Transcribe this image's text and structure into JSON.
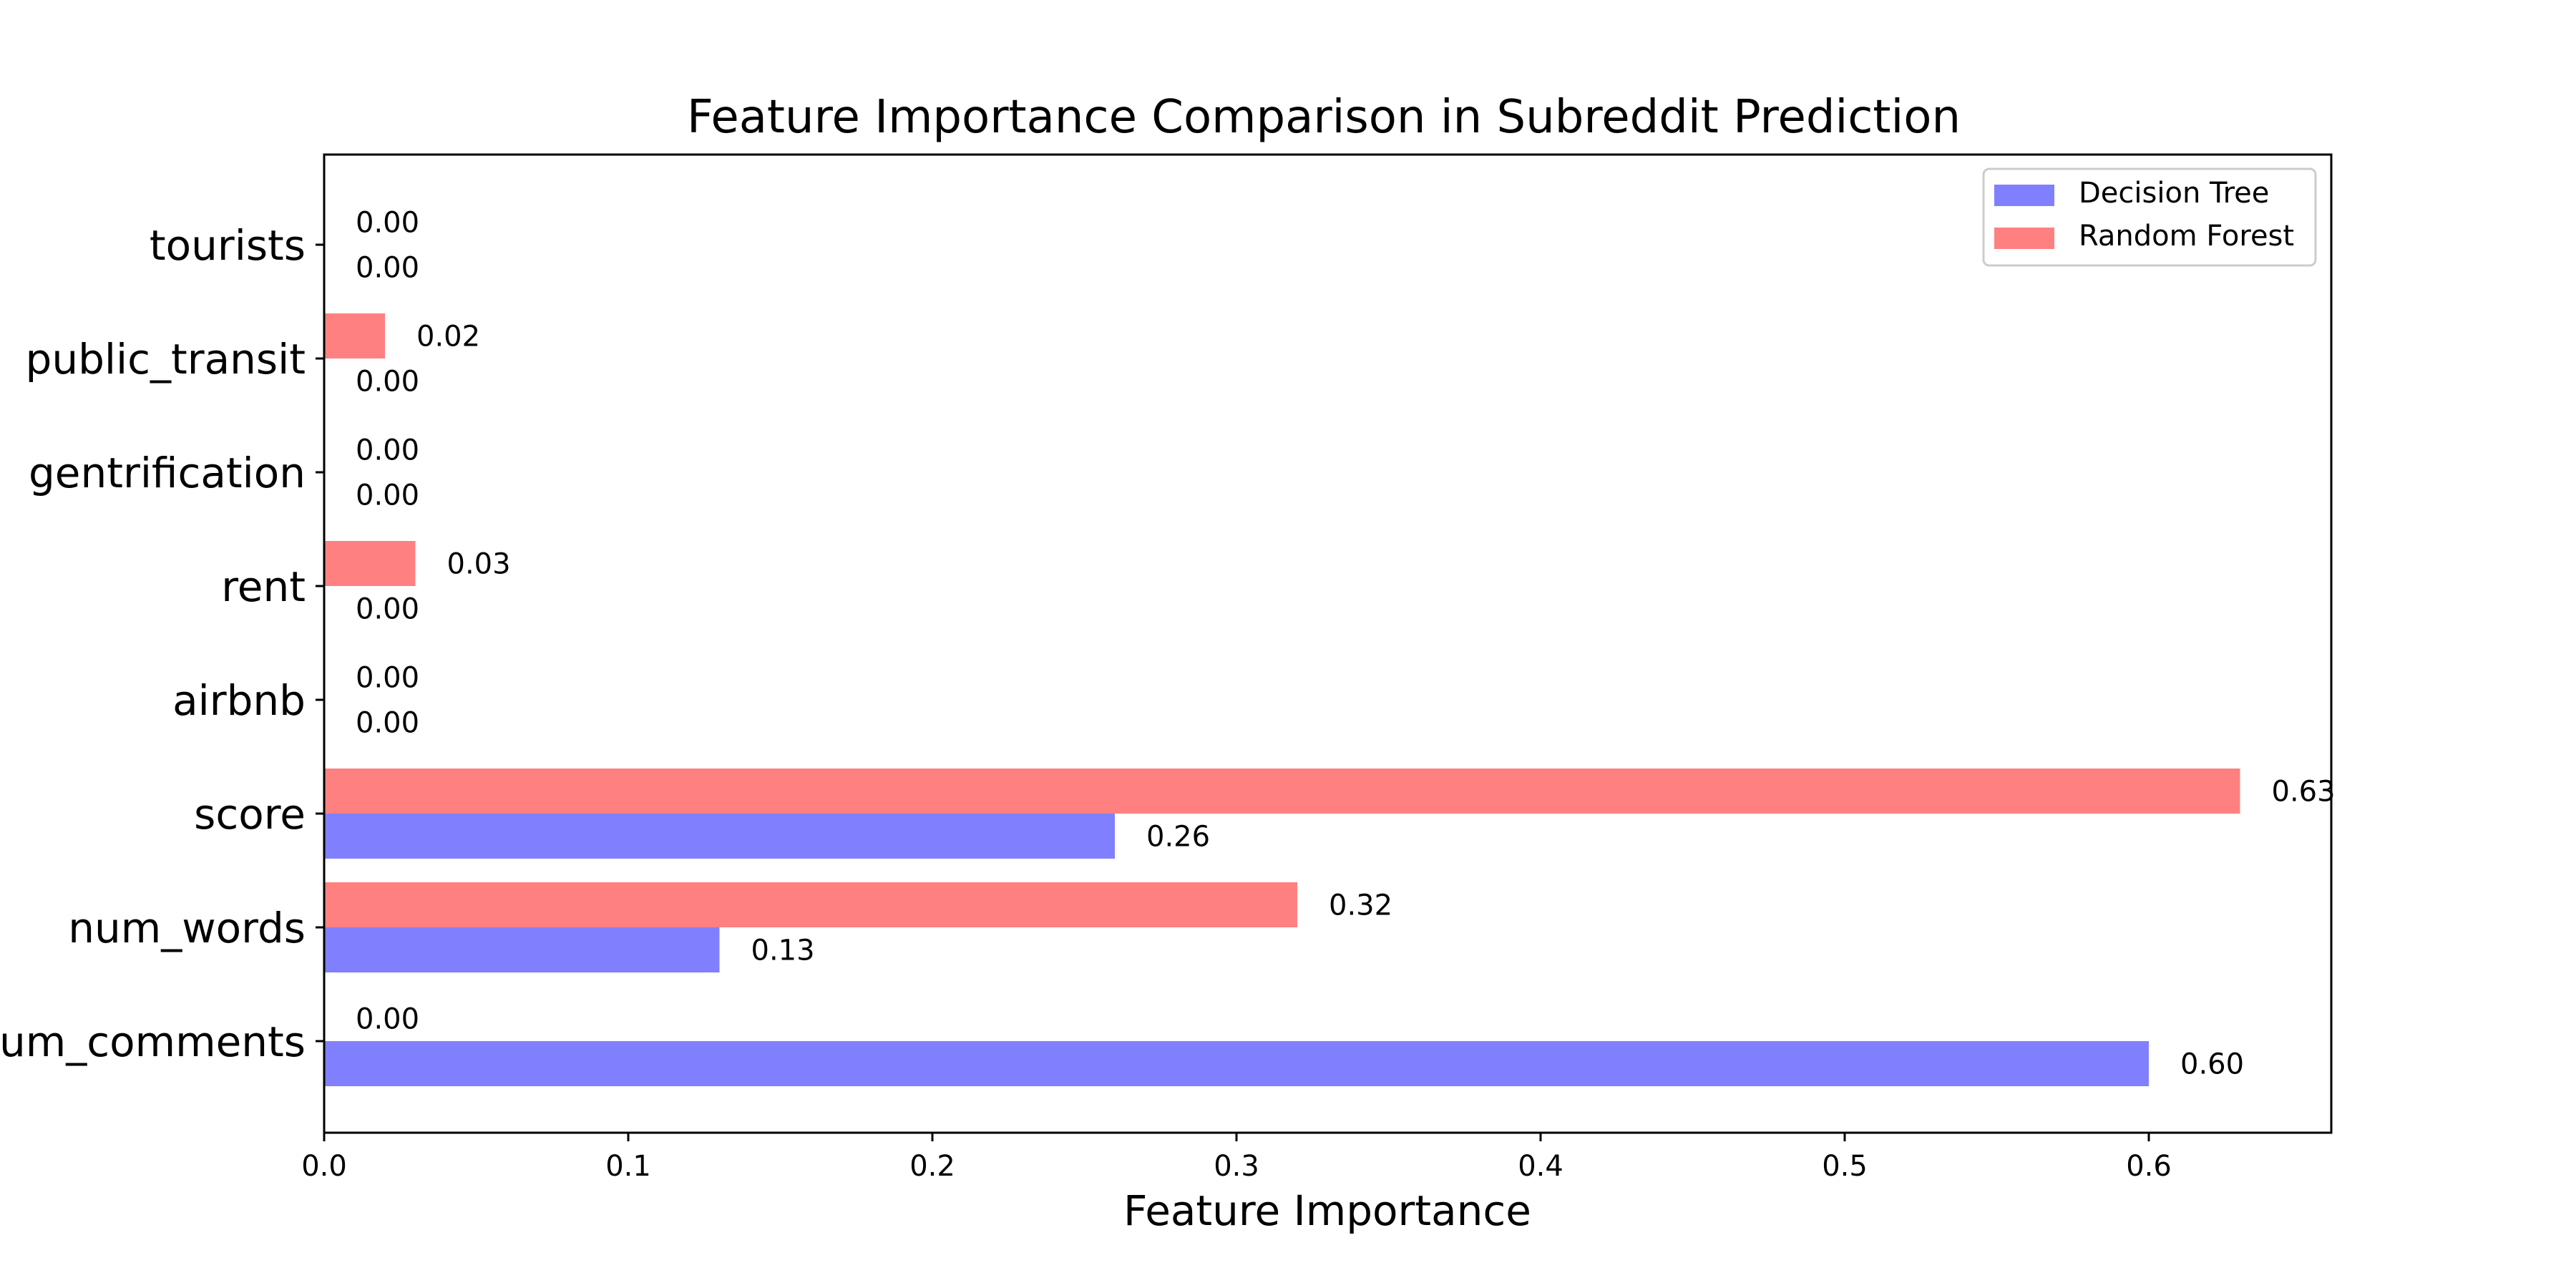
{
  "chart_data": {
    "type": "bar",
    "orientation": "horizontal",
    "title": "Feature Importance Comparison in Subreddit Prediction",
    "xlabel": "Feature Importance",
    "ylabel": "",
    "categories": [
      "num_comments",
      "num_words",
      "score",
      "airbnb",
      "rent",
      "gentrification",
      "public_transit",
      "tourists"
    ],
    "series": [
      {
        "name": "Decision Tree",
        "color": "#8080ff",
        "values": [
          0.6,
          0.13,
          0.26,
          0.0,
          0.0,
          0.0,
          0.0,
          0.0
        ],
        "labels": [
          "0.60",
          "0.13",
          "0.26",
          "0.00",
          "0.00",
          "0.00",
          "0.00",
          "0.00"
        ]
      },
      {
        "name": "Random Forest",
        "color": "#ff8080",
        "values": [
          0.0,
          0.32,
          0.63,
          0.0,
          0.03,
          0.0,
          0.02,
          0.0
        ],
        "labels": [
          "0.00",
          "0.32",
          "0.63",
          "0.00",
          "0.03",
          "0.00",
          "0.02",
          "0.00"
        ]
      }
    ],
    "xlim": [
      0,
      0.66
    ],
    "xticks": [
      0.0,
      0.1,
      0.2,
      0.3,
      0.4,
      0.5,
      0.6
    ],
    "xtick_labels": [
      "0.0",
      "0.1",
      "0.2",
      "0.3",
      "0.4",
      "0.5",
      "0.6"
    ],
    "grid": false,
    "legend": {
      "placement": "top-right",
      "entries": [
        "Decision Tree",
        "Random Forest"
      ]
    }
  }
}
